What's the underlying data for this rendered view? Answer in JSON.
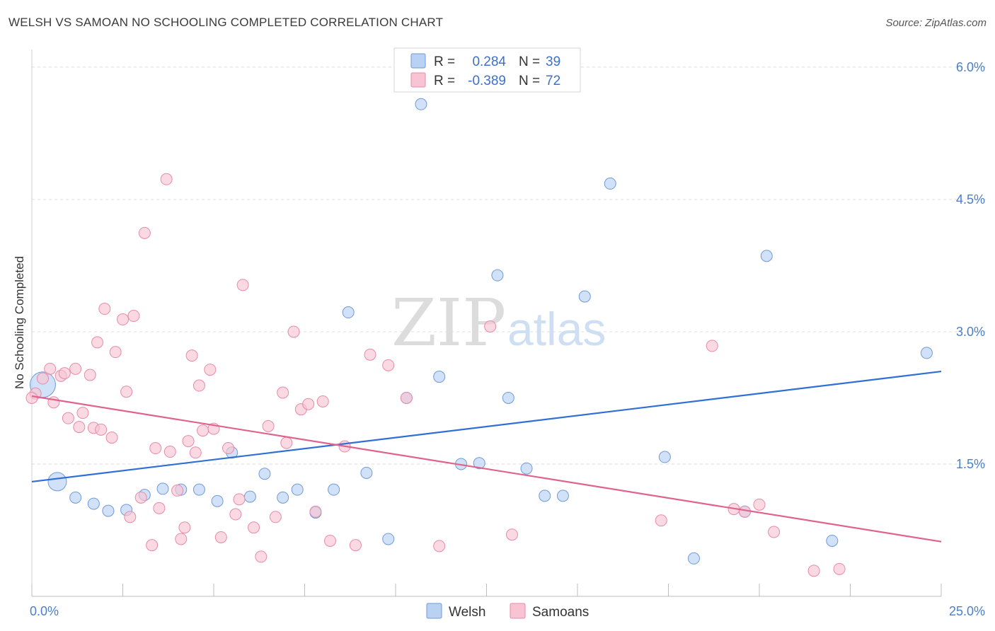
{
  "title": "WELSH VS SAMOAN NO SCHOOLING COMPLETED CORRELATION CHART",
  "source": "Source: ZipAtlas.com",
  "watermark": {
    "zip": "ZIP",
    "atlas": "atlas"
  },
  "colors": {
    "welsh_fill": "#b9d1f3",
    "welsh_stroke": "#6f9ad8",
    "welsh_line": "#2f6fd6",
    "samoan_fill": "#f8c4d4",
    "samoan_stroke": "#e88aa8",
    "samoan_line": "#e0628e",
    "tick_label": "#4a7fc8"
  },
  "legend": {
    "rows": [
      {
        "r_label": "R =",
        "r_value": "0.284",
        "n_label": "N =",
        "n_value": "39"
      },
      {
        "r_label": "R =",
        "r_value": "-0.389",
        "n_label": "N =",
        "n_value": "72"
      }
    ]
  },
  "chart_data": {
    "type": "scatter",
    "title": "WELSH VS SAMOAN NO SCHOOLING COMPLETED CORRELATION CHART",
    "xlabel": "",
    "ylabel": "No Schooling Completed",
    "xlim": [
      0,
      25
    ],
    "ylim": [
      0,
      6.2
    ],
    "x_tick_labels": [
      "0.0%",
      "25.0%"
    ],
    "y_ticks": [
      1.5,
      3.0,
      4.5,
      6.0
    ],
    "y_tick_labels": [
      "1.5%",
      "3.0%",
      "4.5%",
      "6.0%"
    ],
    "grid": "horizontal dashed",
    "legend_position": "top-center",
    "series": [
      {
        "name": "Welsh",
        "trend": {
          "x": [
            0,
            25
          ],
          "y": [
            1.3,
            2.55
          ]
        },
        "points": [
          {
            "x": 0.3,
            "y": 2.4,
            "big": 2
          },
          {
            "x": 0.7,
            "y": 1.3,
            "big": 1
          },
          {
            "x": 1.2,
            "y": 1.12
          },
          {
            "x": 1.7,
            "y": 1.05
          },
          {
            "x": 2.1,
            "y": 0.97
          },
          {
            "x": 2.6,
            "y": 0.98
          },
          {
            "x": 3.1,
            "y": 1.15
          },
          {
            "x": 3.6,
            "y": 1.22
          },
          {
            "x": 4.1,
            "y": 1.21
          },
          {
            "x": 4.6,
            "y": 1.21
          },
          {
            "x": 5.1,
            "y": 1.08
          },
          {
            "x": 5.5,
            "y": 1.63
          },
          {
            "x": 6.0,
            "y": 1.13
          },
          {
            "x": 6.4,
            "y": 1.39
          },
          {
            "x": 6.9,
            "y": 1.12
          },
          {
            "x": 7.3,
            "y": 1.21
          },
          {
            "x": 7.8,
            "y": 0.95
          },
          {
            "x": 8.3,
            "y": 1.21
          },
          {
            "x": 8.7,
            "y": 3.22
          },
          {
            "x": 9.2,
            "y": 1.4
          },
          {
            "x": 9.8,
            "y": 0.65
          },
          {
            "x": 10.3,
            "y": 2.25
          },
          {
            "x": 10.7,
            "y": 5.58
          },
          {
            "x": 11.2,
            "y": 2.49
          },
          {
            "x": 11.8,
            "y": 1.5
          },
          {
            "x": 12.3,
            "y": 1.51
          },
          {
            "x": 12.8,
            "y": 3.64
          },
          {
            "x": 13.1,
            "y": 2.25
          },
          {
            "x": 13.6,
            "y": 1.45
          },
          {
            "x": 14.1,
            "y": 1.14
          },
          {
            "x": 14.6,
            "y": 1.14
          },
          {
            "x": 15.2,
            "y": 3.4
          },
          {
            "x": 15.9,
            "y": 4.68
          },
          {
            "x": 17.4,
            "y": 1.58
          },
          {
            "x": 18.2,
            "y": 0.43
          },
          {
            "x": 19.6,
            "y": 0.96
          },
          {
            "x": 20.2,
            "y": 3.86
          },
          {
            "x": 22.0,
            "y": 0.63
          },
          {
            "x": 24.6,
            "y": 2.76
          }
        ]
      },
      {
        "name": "Samoans",
        "trend": {
          "x": [
            0,
            25
          ],
          "y": [
            2.27,
            0.62
          ]
        },
        "points": [
          {
            "x": 0.1,
            "y": 2.3
          },
          {
            "x": 0.3,
            "y": 2.47
          },
          {
            "x": 0.5,
            "y": 2.58
          },
          {
            "x": 0.6,
            "y": 2.2
          },
          {
            "x": 0.8,
            "y": 2.5
          },
          {
            "x": 0.9,
            "y": 2.53
          },
          {
            "x": 1.0,
            "y": 2.02
          },
          {
            "x": 1.2,
            "y": 2.58
          },
          {
            "x": 1.3,
            "y": 1.92
          },
          {
            "x": 1.4,
            "y": 2.08
          },
          {
            "x": 1.6,
            "y": 2.51
          },
          {
            "x": 1.7,
            "y": 1.91
          },
          {
            "x": 1.8,
            "y": 2.88
          },
          {
            "x": 1.9,
            "y": 1.89
          },
          {
            "x": 2.0,
            "y": 3.26
          },
          {
            "x": 2.2,
            "y": 1.8
          },
          {
            "x": 2.3,
            "y": 2.77
          },
          {
            "x": 2.5,
            "y": 3.14
          },
          {
            "x": 2.6,
            "y": 2.32
          },
          {
            "x": 2.7,
            "y": 0.9
          },
          {
            "x": 2.8,
            "y": 3.18
          },
          {
            "x": 3.0,
            "y": 1.12
          },
          {
            "x": 3.1,
            "y": 4.12
          },
          {
            "x": 3.3,
            "y": 0.58
          },
          {
            "x": 3.4,
            "y": 1.68
          },
          {
            "x": 3.5,
            "y": 1.0
          },
          {
            "x": 3.7,
            "y": 4.73
          },
          {
            "x": 3.8,
            "y": 1.64
          },
          {
            "x": 4.0,
            "y": 1.2
          },
          {
            "x": 4.1,
            "y": 0.65
          },
          {
            "x": 4.2,
            "y": 0.78
          },
          {
            "x": 4.3,
            "y": 1.76
          },
          {
            "x": 4.4,
            "y": 2.73
          },
          {
            "x": 4.5,
            "y": 1.63
          },
          {
            "x": 4.6,
            "y": 2.39
          },
          {
            "x": 4.7,
            "y": 1.88
          },
          {
            "x": 4.9,
            "y": 2.57
          },
          {
            "x": 5.0,
            "y": 1.9
          },
          {
            "x": 5.2,
            "y": 0.67
          },
          {
            "x": 5.4,
            "y": 1.68
          },
          {
            "x": 5.6,
            "y": 0.93
          },
          {
            "x": 5.7,
            "y": 1.1
          },
          {
            "x": 5.8,
            "y": 3.53
          },
          {
            "x": 6.1,
            "y": 0.78
          },
          {
            "x": 6.3,
            "y": 0.45
          },
          {
            "x": 6.5,
            "y": 1.93
          },
          {
            "x": 6.7,
            "y": 0.9
          },
          {
            "x": 6.9,
            "y": 2.31
          },
          {
            "x": 7.0,
            "y": 1.74
          },
          {
            "x": 7.2,
            "y": 3.0
          },
          {
            "x": 7.4,
            "y": 2.12
          },
          {
            "x": 7.6,
            "y": 2.18
          },
          {
            "x": 7.8,
            "y": 0.96
          },
          {
            "x": 8.0,
            "y": 2.21
          },
          {
            "x": 8.2,
            "y": 0.63
          },
          {
            "x": 8.6,
            "y": 1.7
          },
          {
            "x": 8.9,
            "y": 0.58
          },
          {
            "x": 9.3,
            "y": 2.74
          },
          {
            "x": 9.8,
            "y": 2.62
          },
          {
            "x": 10.3,
            "y": 2.25
          },
          {
            "x": 11.2,
            "y": 0.57
          },
          {
            "x": 12.6,
            "y": 3.06
          },
          {
            "x": 13.2,
            "y": 0.7
          },
          {
            "x": 17.3,
            "y": 0.86
          },
          {
            "x": 18.7,
            "y": 2.84
          },
          {
            "x": 19.3,
            "y": 0.99
          },
          {
            "x": 19.6,
            "y": 0.96
          },
          {
            "x": 20.0,
            "y": 1.04
          },
          {
            "x": 20.4,
            "y": 0.73
          },
          {
            "x": 21.5,
            "y": 0.29
          },
          {
            "x": 22.2,
            "y": 0.31
          },
          {
            "x": 0.0,
            "y": 2.25
          }
        ]
      }
    ]
  },
  "bottom_legend": [
    {
      "label": "Welsh"
    },
    {
      "label": "Samoans"
    }
  ]
}
